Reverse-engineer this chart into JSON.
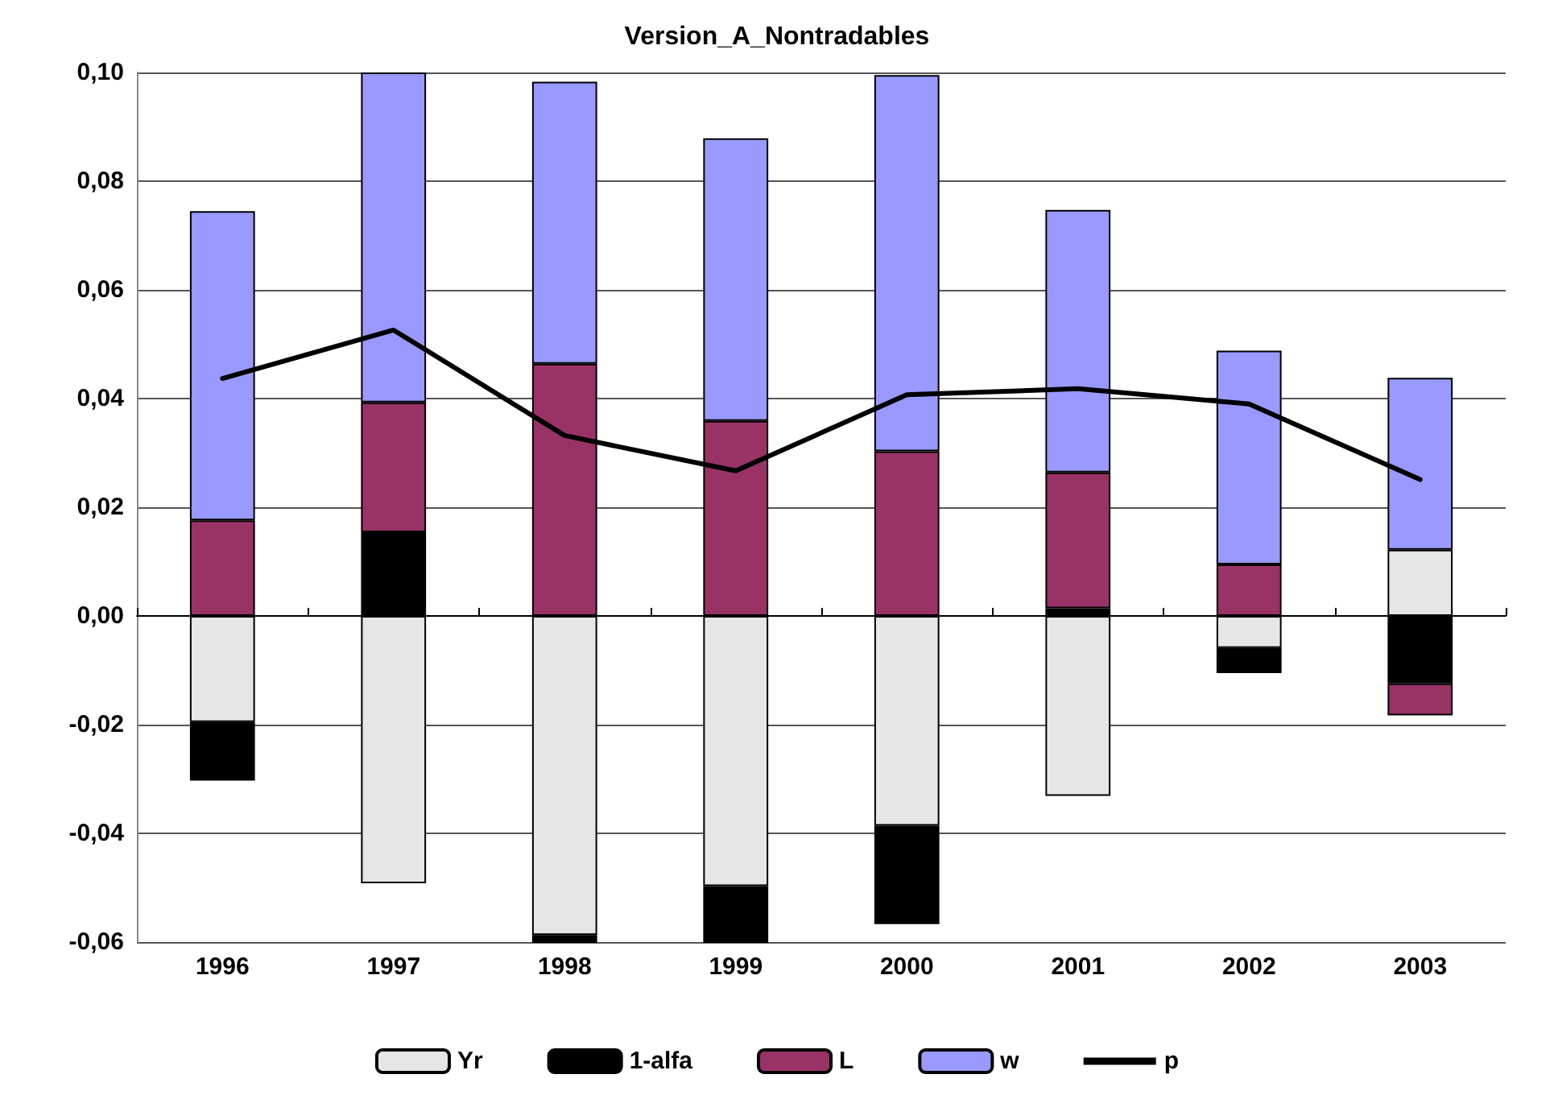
{
  "chart_data": {
    "type": "bar",
    "title": "Version_A_Nontradables",
    "stacked": true,
    "categories": [
      "1996",
      "1997",
      "1998",
      "1999",
      "2000",
      "2001",
      "2002",
      "2003"
    ],
    "series": [
      {
        "name": "Yr",
        "color": "#e6e6e6",
        "values": [
          -0.0195,
          -0.0492,
          -0.0587,
          -0.0497,
          -0.0386,
          -0.0331,
          -0.0059,
          0.0122
        ]
      },
      {
        "name": "1-alfa",
        "color": "#000000",
        "values": [
          -0.0108,
          0.0154,
          -0.0026,
          -0.0114,
          -0.0181,
          0.0014,
          -0.0046,
          -0.0124
        ]
      },
      {
        "name": "L",
        "color": "#993366",
        "values": [
          0.0176,
          0.0239,
          0.0464,
          0.0359,
          0.0303,
          0.025,
          0.0095,
          -0.0059
        ]
      },
      {
        "name": "w",
        "color": "#9999ff",
        "values": [
          0.0569,
          0.0607,
          0.0519,
          0.052,
          0.0692,
          0.0483,
          0.0393,
          0.0316
        ]
      },
      {
        "name": "p",
        "type": "line",
        "color": "#000000",
        "values": [
          0.0437,
          0.0526,
          0.0332,
          0.0267,
          0.0407,
          0.0418,
          0.039,
          0.0251
        ]
      }
    ],
    "ylim": [
      -0.06,
      0.1
    ],
    "yticks": [
      {
        "value": -0.06,
        "label": "-0,06"
      },
      {
        "value": -0.04,
        "label": "-0,04"
      },
      {
        "value": -0.02,
        "label": "-0,02"
      },
      {
        "value": 0,
        "label": "0,00"
      },
      {
        "value": 0.02,
        "label": "0,02"
      },
      {
        "value": 0.04,
        "label": "0,04"
      },
      {
        "value": 0.06,
        "label": "0,06"
      },
      {
        "value": 0.08,
        "label": "0,08"
      },
      {
        "value": 0.1,
        "label": "0,10"
      }
    ],
    "grid": "y",
    "legend": "bottom",
    "marker": "none",
    "line_style": "solid"
  }
}
